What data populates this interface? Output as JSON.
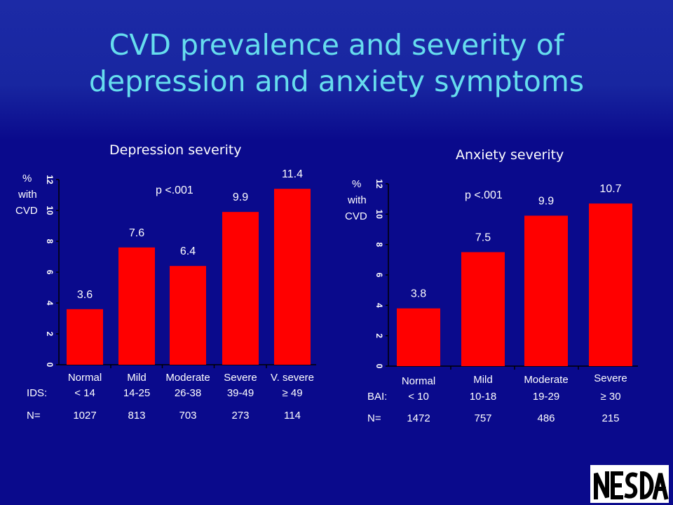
{
  "slide": {
    "title_line1": "CVD prevalence and severity of",
    "title_line2": "depression and anxiety symptoms",
    "colors": {
      "background": "#0a0a8c",
      "title": "#66ddee",
      "bar": "#ff0000",
      "text": "#ffffff"
    },
    "logo": "NESDA"
  },
  "chart_data": [
    {
      "type": "bar",
      "title": "Depression severity",
      "ylabel_lines": [
        "%",
        "with",
        "CVD"
      ],
      "ylim": [
        0,
        12
      ],
      "yticks": [
        "0",
        "2",
        "4",
        "6",
        "8",
        "10",
        "12"
      ],
      "annotation": "p <.001",
      "category_names": [
        "Normal",
        "Mild",
        "Moderate",
        "Severe",
        "V. severe"
      ],
      "category_ranges": [
        "< 14",
        "14-25",
        "26-38",
        "39-49",
        "≥ 49"
      ],
      "values": [
        3.6,
        7.6,
        6.4,
        9.9,
        11.4
      ],
      "value_labels": [
        "3.6",
        "7.6",
        "6.4",
        "9.9",
        "11.4"
      ],
      "scale_label": "IDS:",
      "n_label": "N=",
      "n_values": [
        "1027",
        "813",
        "703",
        "273",
        "114"
      ]
    },
    {
      "type": "bar",
      "title": "Anxiety severity",
      "ylabel_lines": [
        "%",
        "with",
        "CVD"
      ],
      "ylim": [
        0,
        12
      ],
      "yticks": [
        "0",
        "2",
        "4",
        "6",
        "8",
        "10",
        "12"
      ],
      "annotation": "p <.001",
      "category_names": [
        "Normal",
        "Mild",
        "Moderate",
        "Severe"
      ],
      "category_ranges": [
        "< 10",
        "10-18",
        "19-29",
        "≥ 30"
      ],
      "values": [
        3.8,
        7.5,
        9.9,
        10.7
      ],
      "value_labels": [
        "3.8",
        "7.5",
        "9.9",
        "10.7"
      ],
      "scale_label": "BAI:",
      "n_label": "N=",
      "n_values": [
        "1472",
        "757",
        "486",
        "215"
      ]
    }
  ]
}
